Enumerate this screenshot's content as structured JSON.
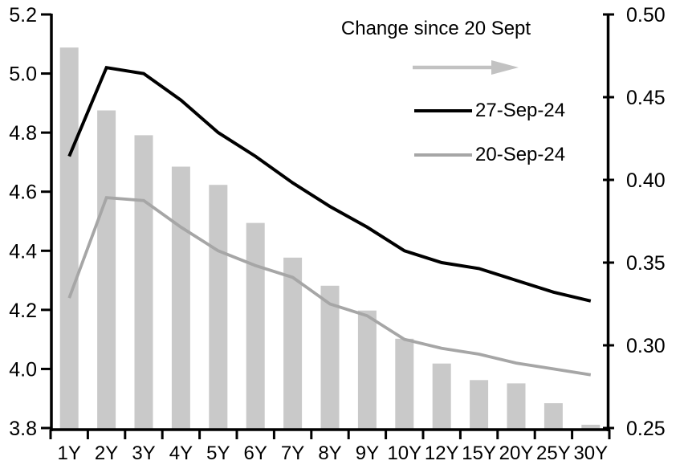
{
  "chart": {
    "legend": {
      "change_label": "Change since 20 Sept",
      "series1_label": "27-Sep-24",
      "series2_label": "20-Sep-24"
    },
    "colors": {
      "background": "#ffffff",
      "axis": "#000000",
      "text": "#000000",
      "bar": "#c9c9c9",
      "line_27sep": "#000000",
      "line_20sep": "#a6a6a6",
      "arrow": "#c2c2c2"
    }
  },
  "chart_data": {
    "type": "combo",
    "title": "",
    "categories": [
      "1Y",
      "2Y",
      "3Y",
      "4Y",
      "5Y",
      "6Y",
      "7Y",
      "8Y",
      "9Y",
      "10Y",
      "12Y",
      "15Y",
      "20Y",
      "25Y",
      "30Y"
    ],
    "series": [
      {
        "name": "Change since 20 Sept",
        "type": "bar",
        "axis": "right",
        "values": [
          0.48,
          0.442,
          0.427,
          0.408,
          0.397,
          0.374,
          0.353,
          0.336,
          0.321,
          0.304,
          0.289,
          0.279,
          0.277,
          0.265,
          0.252
        ]
      },
      {
        "name": "27-Sep-24",
        "type": "line",
        "axis": "left",
        "values": [
          4.72,
          5.02,
          5.0,
          4.91,
          4.8,
          4.72,
          4.63,
          4.55,
          4.48,
          4.4,
          4.36,
          4.34,
          4.3,
          4.26,
          4.23
        ]
      },
      {
        "name": "20-Sep-24",
        "type": "line",
        "axis": "left",
        "values": [
          4.24,
          4.58,
          4.57,
          4.48,
          4.4,
          4.35,
          4.31,
          4.22,
          4.18,
          4.1,
          4.07,
          4.05,
          4.02,
          4.0,
          3.98
        ]
      }
    ],
    "left_axis": {
      "min": 3.8,
      "max": 5.2,
      "tick_labels": [
        "5.2",
        "5.0",
        "4.8",
        "4.6",
        "4.4",
        "4.2",
        "4.0",
        "3.8"
      ]
    },
    "right_axis": {
      "min": 0.25,
      "max": 0.5,
      "tick_labels": [
        "0.50",
        "0.45",
        "0.40",
        "0.35",
        "0.30",
        "0.25"
      ]
    },
    "xlabel": "",
    "ylabel": "",
    "grid": false,
    "legend_position": "top-center-inside"
  }
}
